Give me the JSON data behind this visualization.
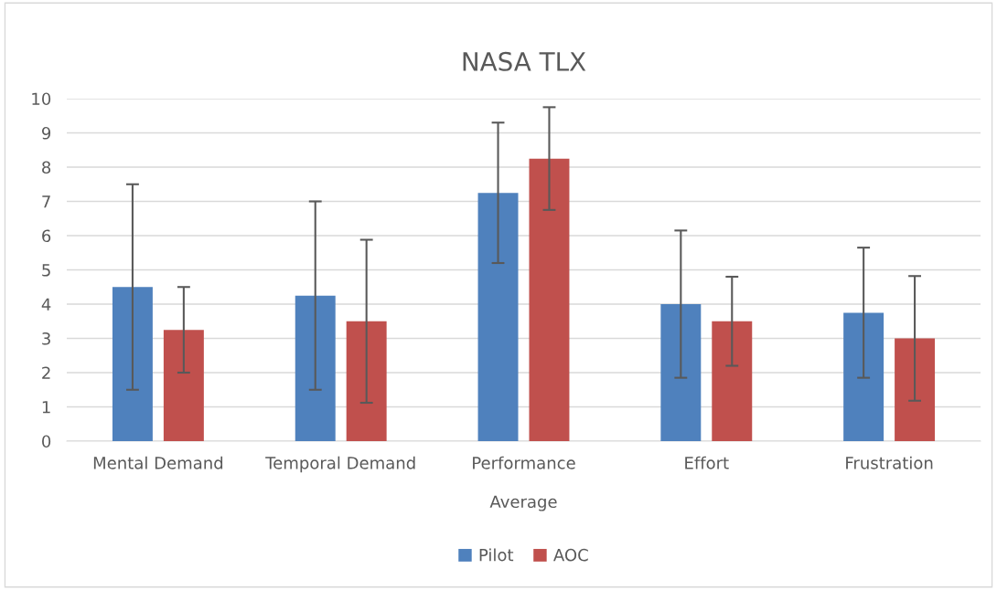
{
  "chart_data": {
    "type": "bar",
    "title": "NASA TLX",
    "xlabel": "Average",
    "categories": [
      "Mental Demand",
      "Temporal Demand",
      "Performance",
      "Effort",
      "Frustration"
    ],
    "series": [
      {
        "name": "Pilot",
        "color": "#4f81bd",
        "values": [
          4.5,
          4.25,
          7.25,
          4.0,
          3.75
        ],
        "errors": [
          3.0,
          2.75,
          2.05,
          2.15,
          1.9
        ]
      },
      {
        "name": "AOC",
        "color": "#c0504d",
        "values": [
          3.25,
          3.5,
          8.25,
          3.5,
          3.0
        ],
        "errors": [
          1.25,
          2.38,
          1.5,
          1.3,
          1.82
        ]
      }
    ],
    "ylim": [
      0,
      10
    ],
    "yticks": [
      0,
      1,
      2,
      3,
      4,
      5,
      6,
      7,
      8,
      9,
      10
    ],
    "grid": "y",
    "legend": "bottom"
  }
}
